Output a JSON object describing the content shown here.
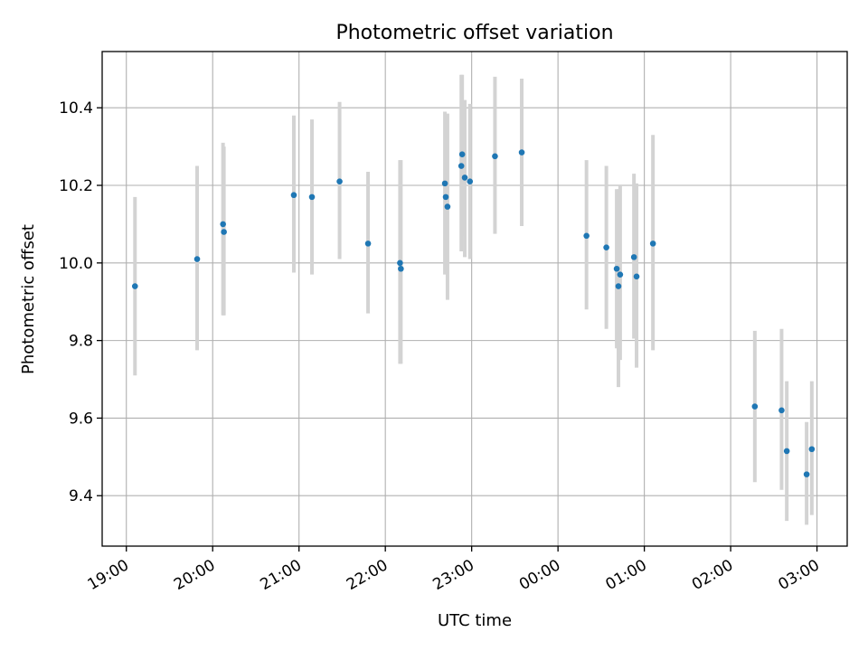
{
  "chart_data": {
    "type": "scatter",
    "title": "Photometric offset variation",
    "xlabel": "UTC time",
    "ylabel": "Photometric offset",
    "x_unit": "hours since 19:00 UTC (times after midnight continue past 24:00)",
    "xlim": [
      -0.28,
      8.35
    ],
    "ylim": [
      9.27,
      10.545
    ],
    "x_ticks": [
      {
        "value": 0,
        "label": "19:00"
      },
      {
        "value": 1,
        "label": "20:00"
      },
      {
        "value": 2,
        "label": "21:00"
      },
      {
        "value": 3,
        "label": "22:00"
      },
      {
        "value": 4,
        "label": "23:00"
      },
      {
        "value": 5,
        "label": "00:00"
      },
      {
        "value": 6,
        "label": "01:00"
      },
      {
        "value": 7,
        "label": "02:00"
      },
      {
        "value": 8,
        "label": "03:00"
      }
    ],
    "y_ticks": [
      {
        "value": 9.4,
        "label": "9.4"
      },
      {
        "value": 9.6,
        "label": "9.6"
      },
      {
        "value": 9.8,
        "label": "9.8"
      },
      {
        "value": 10.0,
        "label": "10.0"
      },
      {
        "value": 10.2,
        "label": "10.2"
      },
      {
        "value": 10.4,
        "label": "10.4"
      }
    ],
    "grid": true,
    "marker_color": "#1f77b4",
    "errorbar_color": "#d3d3d3",
    "points": [
      {
        "x": 0.1,
        "y": 9.94,
        "lo": 9.71,
        "hi": 10.17
      },
      {
        "x": 0.82,
        "y": 10.01,
        "lo": 9.775,
        "hi": 10.25
      },
      {
        "x": 1.12,
        "y": 10.1,
        "lo": 9.865,
        "hi": 10.31
      },
      {
        "x": 1.13,
        "y": 10.08,
        "lo": 9.865,
        "hi": 10.3
      },
      {
        "x": 1.94,
        "y": 10.175,
        "lo": 9.975,
        "hi": 10.38
      },
      {
        "x": 2.15,
        "y": 10.17,
        "lo": 9.97,
        "hi": 10.37
      },
      {
        "x": 2.47,
        "y": 10.21,
        "lo": 10.01,
        "hi": 10.415
      },
      {
        "x": 2.8,
        "y": 10.05,
        "lo": 9.87,
        "hi": 10.235
      },
      {
        "x": 3.17,
        "y": 10.0,
        "lo": 9.74,
        "hi": 10.265
      },
      {
        "x": 3.18,
        "y": 9.985,
        "lo": 9.74,
        "hi": 10.265
      },
      {
        "x": 3.69,
        "y": 10.205,
        "lo": 9.97,
        "hi": 10.39
      },
      {
        "x": 3.7,
        "y": 10.17,
        "lo": 9.99,
        "hi": 10.375
      },
      {
        "x": 3.72,
        "y": 10.145,
        "lo": 9.905,
        "hi": 10.385
      },
      {
        "x": 3.88,
        "y": 10.25,
        "lo": 10.03,
        "hi": 10.485
      },
      {
        "x": 3.89,
        "y": 10.28,
        "lo": 10.07,
        "hi": 10.485
      },
      {
        "x": 3.92,
        "y": 10.22,
        "lo": 10.015,
        "hi": 10.42
      },
      {
        "x": 3.98,
        "y": 10.21,
        "lo": 10.01,
        "hi": 10.41
      },
      {
        "x": 4.27,
        "y": 10.275,
        "lo": 10.075,
        "hi": 10.48
      },
      {
        "x": 4.58,
        "y": 10.285,
        "lo": 10.095,
        "hi": 10.475
      },
      {
        "x": 5.33,
        "y": 10.07,
        "lo": 9.88,
        "hi": 10.265
      },
      {
        "x": 5.56,
        "y": 10.04,
        "lo": 9.83,
        "hi": 10.25
      },
      {
        "x": 5.68,
        "y": 9.985,
        "lo": 9.78,
        "hi": 10.19
      },
      {
        "x": 5.7,
        "y": 9.94,
        "lo": 9.68,
        "hi": 10.19
      },
      {
        "x": 5.72,
        "y": 9.97,
        "lo": 9.75,
        "hi": 10.2
      },
      {
        "x": 5.88,
        "y": 10.015,
        "lo": 9.805,
        "hi": 10.23
      },
      {
        "x": 5.91,
        "y": 9.965,
        "lo": 9.73,
        "hi": 10.205
      },
      {
        "x": 6.1,
        "y": 10.05,
        "lo": 9.775,
        "hi": 10.33
      },
      {
        "x": 7.28,
        "y": 9.63,
        "lo": 9.435,
        "hi": 9.825
      },
      {
        "x": 7.59,
        "y": 9.62,
        "lo": 9.415,
        "hi": 9.83
      },
      {
        "x": 7.65,
        "y": 9.515,
        "lo": 9.335,
        "hi": 9.695
      },
      {
        "x": 7.88,
        "y": 9.455,
        "lo": 9.325,
        "hi": 9.59
      },
      {
        "x": 7.94,
        "y": 9.52,
        "lo": 9.35,
        "hi": 9.695
      }
    ]
  }
}
